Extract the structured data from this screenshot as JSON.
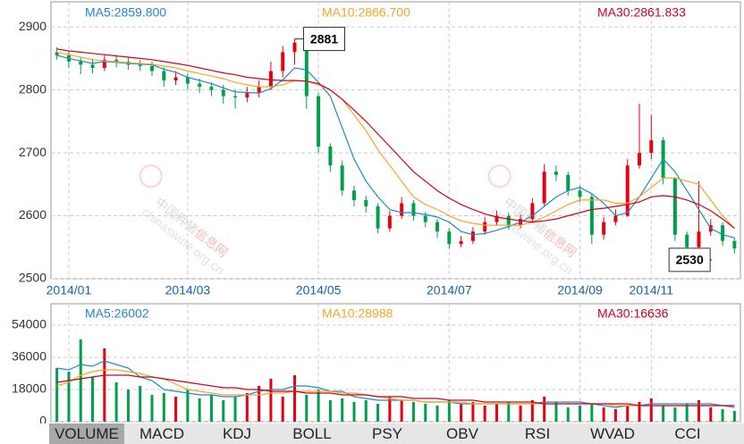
{
  "chart_data": [
    {
      "type": "candlestick",
      "categories": [
        null,
        "2014/01",
        null,
        null,
        null,
        null,
        null,
        null,
        null,
        null,
        null,
        "2014/03",
        null,
        null,
        null,
        null,
        null,
        null,
        null,
        null,
        null,
        null,
        "2014/05",
        null,
        null,
        null,
        null,
        null,
        null,
        null,
        null,
        null,
        null,
        "2014/07",
        null,
        null,
        null,
        null,
        null,
        null,
        null,
        null,
        null,
        null,
        "2014/09",
        null,
        null,
        null,
        null,
        null,
        "2014/11",
        null,
        null,
        null,
        null,
        null,
        null,
        null
      ],
      "open": [
        2860,
        2855,
        2845,
        2840,
        2835,
        2848,
        2845,
        2840,
        2838,
        2830,
        2815,
        2820,
        2810,
        2805,
        2800,
        2790,
        2788,
        2795,
        2805,
        2830,
        2860,
        2875,
        2790,
        2710,
        2680,
        2640,
        2625,
        2615,
        2580,
        2600,
        2620,
        2600,
        2590,
        2575,
        2555,
        2560,
        2575,
        2590,
        2600,
        2585,
        2595,
        2620,
        2670,
        2665,
        2640,
        2630,
        2570,
        2590,
        2600,
        2680,
        2700,
        2720,
        2660,
        2570,
        2550,
        2575,
        2585,
        2560
      ],
      "high": [
        2868,
        2862,
        2852,
        2850,
        2856,
        2855,
        2852,
        2848,
        2845,
        2836,
        2830,
        2826,
        2818,
        2812,
        2808,
        2800,
        2805,
        2815,
        2845,
        2870,
        2881,
        2878,
        2795,
        2715,
        2688,
        2648,
        2632,
        2620,
        2608,
        2630,
        2625,
        2606,
        2595,
        2580,
        2568,
        2582,
        2598,
        2608,
        2605,
        2602,
        2628,
        2682,
        2680,
        2670,
        2648,
        2635,
        2598,
        2610,
        2690,
        2778,
        2760,
        2725,
        2662,
        2575,
        2655,
        2595,
        2590,
        2565
      ],
      "low": [
        2848,
        2835,
        2825,
        2826,
        2830,
        2836,
        2832,
        2830,
        2822,
        2805,
        2808,
        2800,
        2795,
        2790,
        2778,
        2770,
        2780,
        2788,
        2800,
        2820,
        2840,
        2770,
        2700,
        2670,
        2632,
        2615,
        2605,
        2572,
        2575,
        2595,
        2592,
        2582,
        2565,
        2548,
        2550,
        2555,
        2570,
        2585,
        2578,
        2580,
        2590,
        2615,
        2655,
        2632,
        2622,
        2555,
        2562,
        2585,
        2598,
        2675,
        2690,
        2650,
        2560,
        2530,
        2545,
        2568,
        2552,
        2540
      ],
      "close": [
        2855,
        2845,
        2840,
        2835,
        2848,
        2845,
        2840,
        2838,
        2830,
        2815,
        2820,
        2810,
        2805,
        2800,
        2790,
        2788,
        2795,
        2805,
        2830,
        2860,
        2875,
        2790,
        2710,
        2680,
        2640,
        2625,
        2615,
        2580,
        2600,
        2620,
        2600,
        2590,
        2575,
        2555,
        2560,
        2575,
        2590,
        2600,
        2585,
        2595,
        2620,
        2670,
        2665,
        2640,
        2630,
        2570,
        2590,
        2600,
        2680,
        2700,
        2720,
        2660,
        2570,
        2550,
        2575,
        2585,
        2560,
        2548
      ],
      "up_color": "#e60012",
      "down_color": "#00a04a",
      "series": [
        {
          "name": "MA5:2859.800",
          "color": "#1e88d2",
          "values": [
            2855,
            2850,
            2846,
            2842,
            2845,
            2844,
            2842,
            2841,
            2840,
            2833,
            2828,
            2820,
            2815,
            2810,
            2803,
            2797,
            2796,
            2795,
            2802,
            2816,
            2835,
            2832,
            2812,
            2790,
            2740,
            2690,
            2655,
            2630,
            2610,
            2605,
            2605,
            2602,
            2598,
            2590,
            2575,
            2570,
            2572,
            2577,
            2583,
            2590,
            2600,
            2615,
            2630,
            2640,
            2645,
            2635,
            2620,
            2600,
            2605,
            2630,
            2660,
            2690,
            2670,
            2640,
            2610,
            2580,
            2570,
            2565
          ]
        },
        {
          "name": "MA10:2866.700",
          "color": "#f5a623",
          "values": [
            2860,
            2856,
            2852,
            2848,
            2846,
            2845,
            2843,
            2842,
            2841,
            2838,
            2835,
            2830,
            2826,
            2822,
            2818,
            2812,
            2808,
            2805,
            2805,
            2808,
            2815,
            2814,
            2808,
            2800,
            2785,
            2760,
            2735,
            2705,
            2680,
            2655,
            2630,
            2618,
            2610,
            2600,
            2592,
            2588,
            2585,
            2585,
            2585,
            2585,
            2590,
            2598,
            2608,
            2618,
            2625,
            2625,
            2625,
            2620,
            2620,
            2630,
            2645,
            2660,
            2660,
            2655,
            2650,
            2625,
            2600,
            2580
          ]
        },
        {
          "name": "MA30:2861.833",
          "color": "#d0021b",
          "values": [
            2865,
            2862,
            2860,
            2858,
            2856,
            2854,
            2852,
            2850,
            2848,
            2845,
            2842,
            2839,
            2835,
            2831,
            2827,
            2824,
            2820,
            2818,
            2816,
            2815,
            2815,
            2814,
            2810,
            2800,
            2785,
            2768,
            2750,
            2730,
            2710,
            2690,
            2670,
            2655,
            2640,
            2628,
            2618,
            2610,
            2603,
            2598,
            2595,
            2592,
            2590,
            2592,
            2595,
            2600,
            2605,
            2610,
            2612,
            2615,
            2618,
            2622,
            2630,
            2632,
            2630,
            2625,
            2618,
            2608,
            2595,
            2580
          ]
        }
      ],
      "ylim": [
        2500,
        2940
      ],
      "yticks": [
        2500,
        2600,
        2700,
        2800,
        2900
      ],
      "grid": true
    },
    {
      "type": "bar",
      "values": [
        30000,
        28000,
        46000,
        25000,
        41000,
        22000,
        18000,
        20000,
        15000,
        16000,
        14000,
        18000,
        13000,
        15000,
        12000,
        14000,
        16000,
        20000,
        24000,
        14000,
        26000,
        15000,
        18000,
        12000,
        13000,
        11000,
        12000,
        10000,
        14000,
        12000,
        11000,
        10000,
        9000,
        12000,
        10000,
        11000,
        9000,
        10000,
        11000,
        9000,
        12000,
        14000,
        11000,
        8000,
        9000,
        10000,
        8000,
        7000,
        9000,
        11000,
        13000,
        9000,
        8000,
        10000,
        12000,
        8000,
        7000,
        6000
      ],
      "series": [
        {
          "name": "MA5:26002",
          "color": "#1e88d2",
          "values": [
            30000,
            29000,
            32000,
            31000,
            34000,
            32000,
            30000,
            25000,
            23000,
            18000,
            17000,
            16000,
            15000,
            15000,
            14000,
            14000,
            15000,
            17000,
            18000,
            18000,
            20000,
            20000,
            19000,
            17000,
            17000,
            14000,
            13000,
            12000,
            12000,
            12000,
            12000,
            11000,
            11000,
            11000,
            10000,
            10000,
            10000,
            10000,
            10000,
            10000,
            10000,
            11000,
            11000,
            11000,
            11000,
            10000,
            9000,
            8000,
            9000,
            9000,
            10000,
            10000,
            10000,
            10000,
            10000,
            10000,
            9000,
            8000
          ]
        },
        {
          "name": "MA10:28988",
          "color": "#f5a623",
          "values": [
            20000,
            22000,
            26000,
            28000,
            29000,
            29000,
            28000,
            27000,
            25000,
            24000,
            21000,
            18000,
            17000,
            16000,
            15000,
            15000,
            15000,
            15000,
            16000,
            16000,
            17000,
            17000,
            17000,
            17000,
            16000,
            16000,
            15000,
            14000,
            13000,
            12000,
            12000,
            11000,
            11000,
            11000,
            11000,
            10000,
            10000,
            10000,
            10000,
            10000,
            10000,
            10000,
            10000,
            10000,
            10000,
            10000,
            10000,
            9000,
            9000,
            9000,
            9000,
            9000,
            9000,
            9000,
            9000,
            9000,
            9000,
            9000
          ]
        },
        {
          "name": "MA30:16636",
          "color": "#d0021b",
          "values": [
            22000,
            23000,
            24000,
            25000,
            26000,
            26000,
            26000,
            25000,
            25000,
            24000,
            23000,
            22000,
            21000,
            20000,
            19000,
            19000,
            18000,
            18000,
            17000,
            17000,
            17000,
            16000,
            16000,
            16000,
            15000,
            15000,
            15000,
            14000,
            14000,
            14000,
            13000,
            13000,
            13000,
            12000,
            12000,
            12000,
            11000,
            11000,
            11000,
            11000,
            11000,
            10000,
            10000,
            10000,
            10000,
            10000,
            10000,
            10000,
            10000,
            9000,
            9000,
            9000,
            9000,
            9000,
            9000,
            9000,
            9000,
            9000
          ]
        }
      ],
      "ylim": [
        0,
        66000
      ],
      "yticks": [
        0,
        18000,
        36000,
        54000
      ],
      "grid": true
    }
  ],
  "tabs": [
    "VOLUME",
    "MACD",
    "KDJ",
    "BOLL",
    "PSY",
    "OBV",
    "RSI",
    "WVAD",
    "CCI"
  ],
  "watermark": {
    "name": "中国种猪",
    "site": "信息网",
    "url": "chinaswine.org.cn"
  }
}
